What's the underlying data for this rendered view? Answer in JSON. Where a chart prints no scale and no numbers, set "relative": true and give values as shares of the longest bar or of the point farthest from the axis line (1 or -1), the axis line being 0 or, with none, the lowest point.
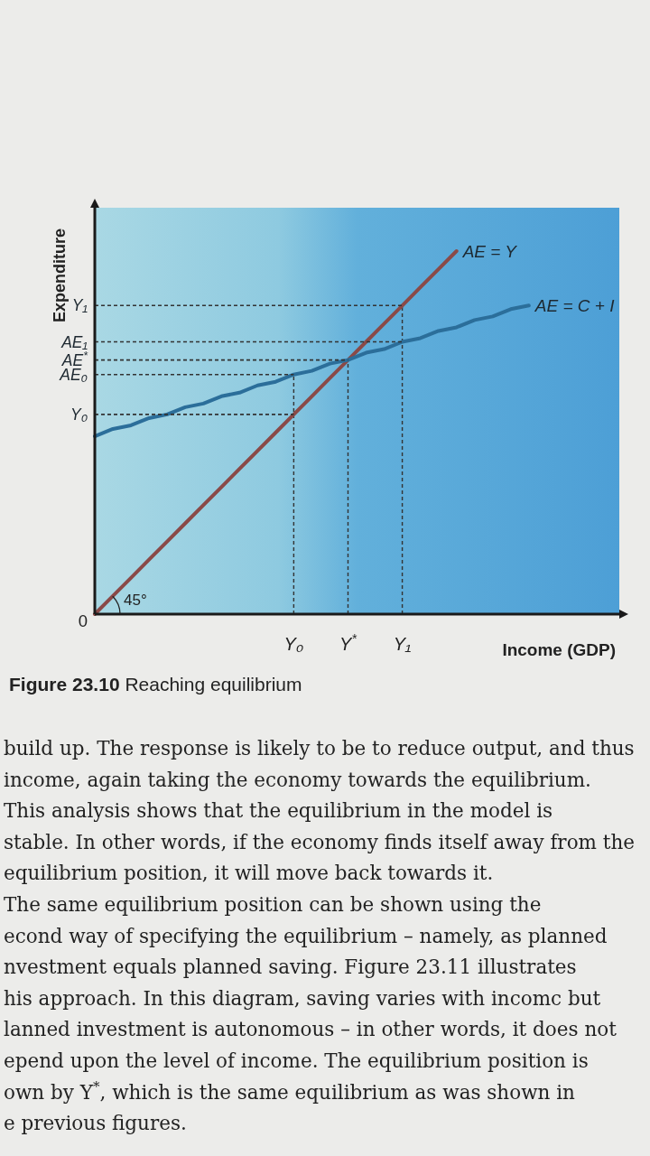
{
  "chart_data": {
    "type": "line",
    "title": "Figure 23.10 Reaching equilibrium",
    "xlabel": "Income (GDP)",
    "ylabel": "Expenditure",
    "relative": true,
    "categories": [
      null,
      null,
      null,
      null,
      null,
      null,
      null,
      null,
      null,
      null,
      null,
      "Y₀",
      null,
      null,
      "Y$^{*}$",
      null,
      null,
      "Y₁",
      null,
      null,
      null,
      null,
      null,
      null,
      null,
      null,
      null,
      null,
      null,
      null
    ],
    "series": [
      {
        "name": "AE = Y",
        "color": "#8a4a48",
        "line_style": "solid",
        "values": [
          0,
          0.05,
          0.1,
          0.15,
          0.2,
          0.25,
          0.3,
          0.35,
          0.4,
          0.45,
          0.5,
          0.55,
          0.6,
          0.65,
          0.7,
          0.75,
          0.8,
          0.85,
          0.9,
          0.95,
          1,
          null,
          null,
          null,
          null,
          null,
          null,
          null,
          null,
          null
        ]
      },
      {
        "name": "AE = C + I",
        "color": "#2b6e9a",
        "line_style": "solid",
        "values": [
          0.49,
          0.51,
          0.52,
          0.54,
          0.55,
          0.57,
          0.58,
          0.6,
          0.61,
          0.63,
          0.64,
          0.66,
          0.67,
          0.69,
          0.7,
          0.72,
          0.73,
          0.75,
          0.76,
          0.78,
          0.79,
          0.81,
          0.82,
          0.84,
          0.85,
          null,
          null,
          null,
          null,
          null
        ]
      },
      {
        "name": "Y₁",
        "color": "#333333",
        "line_style": "dashed",
        "values": [
          0.85,
          0.85,
          0.85,
          0.85,
          0.85,
          0.85,
          0.85,
          0.85,
          0.85,
          0.85,
          0.85,
          0.85,
          0.85,
          0.85,
          0.85,
          0.85,
          0.85,
          0.85,
          null,
          null,
          null,
          null,
          null,
          null,
          null,
          null,
          null,
          null,
          null,
          null
        ]
      },
      {
        "name": "AE₁",
        "color": "#333333",
        "line_style": "dashed",
        "values": [
          0.75,
          0.75,
          0.75,
          0.75,
          0.75,
          0.75,
          0.75,
          0.75,
          0.75,
          0.75,
          0.75,
          0.75,
          0.75,
          0.75,
          0.75,
          0.75,
          0.75,
          0.75,
          null,
          null,
          null,
          null,
          null,
          null,
          null,
          null,
          null,
          null,
          null,
          null
        ]
      },
      {
        "name": "AE$^{*}$",
        "color": "#333333",
        "line_style": "dashed",
        "values": [
          0.7,
          0.7,
          0.7,
          0.7,
          0.7,
          0.7,
          0.7,
          0.7,
          0.7,
          0.7,
          0.7,
          0.7,
          0.7,
          0.7,
          0.7,
          null,
          null,
          null,
          null,
          null,
          null,
          null,
          null,
          null,
          null,
          null,
          null,
          null,
          null,
          null
        ]
      },
      {
        "name": "AE₀",
        "color": "#333333",
        "line_style": "dashed",
        "values": [
          0.66,
          0.66,
          0.66,
          0.66,
          0.66,
          0.66,
          0.66,
          0.66,
          0.66,
          0.66,
          0.66,
          0.66,
          null,
          null,
          null,
          null,
          null,
          null,
          null,
          null,
          null,
          null,
          null,
          null,
          null,
          null,
          null,
          null,
          null,
          null
        ]
      },
      {
        "name": "Y₀",
        "color": "#333333",
        "line_style": "dashed",
        "values": [
          0.55,
          0.55,
          0.55,
          0.55,
          0.55,
          0.55,
          0.55,
          0.55,
          0.55,
          0.55,
          0.55,
          0.55,
          null,
          null,
          null,
          null,
          null,
          null,
          null,
          null,
          null,
          null,
          null,
          null,
          null,
          null,
          null,
          null,
          null,
          null
        ]
      }
    ],
    "ref_lines": [
      {
        "axis": "x",
        "value": "Y₀",
        "color": "#333333",
        "line_style": "dashed"
      },
      {
        "axis": "x",
        "value": "Y$^{*}$",
        "color": "#333333",
        "line_style": "dashed"
      },
      {
        "axis": "x",
        "value": "Y₁",
        "color": "#333333",
        "line_style": "dashed"
      }
    ],
    "annotations": [
      "0",
      {
        "text": "45°"
      },
      "build up. The response is likely to be to reduce output, and thus",
      "income, again taking the economy towards the equilibrium.",
      "This analysis shows that the equilibrium in the model is",
      "stable. In other words, if the economy finds itself away from the",
      "equilibrium position, it will move back towards it.",
      "The same equilibrium position can be shown using the",
      "econd way of specifying the equilibrium – namely, as planned",
      "nvestment equals planned saving. Figure 23.11 illustrates",
      "his approach. In this diagram, saving varies with incomc but",
      "lanned investment is autonomous – in other words, it does not",
      "epend upon the level of income. The equilibrium position is",
      "own by Y$^{*}$, which is the same equilibrium as was shown in",
      "e previous figures."
    ]
  }
}
